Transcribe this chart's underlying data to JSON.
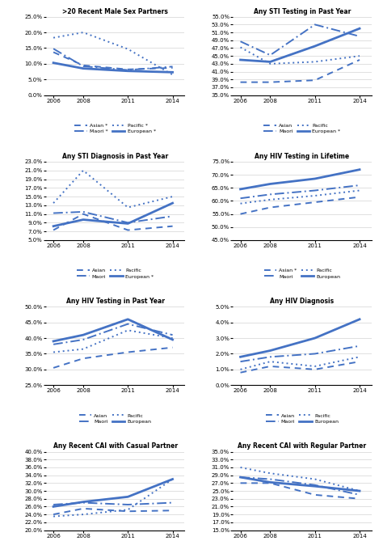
{
  "years": [
    2006,
    2008,
    2011,
    2014
  ],
  "plots": [
    {
      "title": ">20 Recent Male Sex Partners",
      "ylim": [
        0.0,
        0.25
      ],
      "yticks": [
        0.0,
        0.05,
        0.1,
        0.15,
        0.2,
        0.25
      ],
      "ytick_labels": [
        "0.0%",
        "5.0%",
        "10.0%",
        "15.0%",
        "20.0%",
        "25.0%"
      ],
      "series": {
        "Asian": [
          0.137,
          0.095,
          0.082,
          0.087
        ],
        "Maori": [
          0.148,
          0.092,
          0.08,
          0.091
        ],
        "Pacific": [
          0.183,
          0.2,
          0.147,
          0.065
        ],
        "European": [
          0.103,
          0.085,
          0.077,
          0.073
        ]
      },
      "legend_asterisk": {
        "Asian": true,
        "Maori": true,
        "Pacific": true,
        "European": true
      }
    },
    {
      "title": "Any STI Testing in Past Year",
      "ylim": [
        0.35,
        0.55
      ],
      "yticks": [
        0.35,
        0.37,
        0.39,
        0.41,
        0.43,
        0.45,
        0.47,
        0.49,
        0.51,
        0.53,
        0.55
      ],
      "ytick_labels": [
        "35.0%",
        "37.0%",
        "39.0%",
        "41.0%",
        "43.0%",
        "45.0%",
        "47.0%",
        "49.0%",
        "51.0%",
        "53.0%",
        "55.0%"
      ],
      "series": {
        "Asian": [
          0.383,
          0.383,
          0.388,
          0.44
        ],
        "Maori": [
          0.487,
          0.452,
          0.53,
          0.5
        ],
        "Pacific": [
          0.472,
          0.43,
          0.435,
          0.45
        ],
        "European": [
          0.44,
          0.435,
          0.475,
          0.52
        ]
      },
      "legend_asterisk": {
        "Asian": false,
        "Maori": false,
        "Pacific": false,
        "European": true
      }
    },
    {
      "title": "Any STI Diagnosis in Past Year",
      "ylim": [
        0.05,
        0.23
      ],
      "yticks": [
        0.05,
        0.07,
        0.09,
        0.11,
        0.13,
        0.15,
        0.17,
        0.19,
        0.21,
        0.23
      ],
      "ytick_labels": [
        "5.0%",
        "7.0%",
        "9.0%",
        "11.0%",
        "13.0%",
        "15.0%",
        "17.0%",
        "19.0%",
        "21.0%",
        "23.0%"
      ],
      "series": {
        "Asian": [
          0.073,
          0.11,
          0.073,
          0.082
        ],
        "Maori": [
          0.112,
          0.115,
          0.09,
          0.105
        ],
        "Pacific": [
          0.135,
          0.21,
          0.125,
          0.15
        ],
        "European": [
          0.082,
          0.097,
          0.088,
          0.135
        ]
      },
      "legend_asterisk": {
        "Asian": false,
        "Maori": false,
        "Pacific": false,
        "European": true
      }
    },
    {
      "title": "Any HIV Testing in Lifetime",
      "ylim": [
        0.45,
        0.75
      ],
      "yticks": [
        0.45,
        0.5,
        0.55,
        0.6,
        0.65,
        0.7,
        0.75
      ],
      "ytick_labels": [
        "45.0%",
        "50.0%",
        "55.0%",
        "60.0%",
        "65.0%",
        "70.0%",
        "75.0%"
      ],
      "series": {
        "Asian": [
          0.55,
          0.575,
          0.595,
          0.615
        ],
        "Maori": [
          0.61,
          0.625,
          0.64,
          0.66
        ],
        "Pacific": [
          0.59,
          0.605,
          0.62,
          0.64
        ],
        "European": [
          0.645,
          0.665,
          0.685,
          0.72
        ]
      },
      "legend_asterisk": {
        "Asian": true,
        "Maori": false,
        "Pacific": false,
        "European": false
      }
    },
    {
      "title": "Any HIV Testing in Past Year",
      "ylim": [
        0.25,
        0.5
      ],
      "yticks": [
        0.25,
        0.3,
        0.35,
        0.4,
        0.45,
        0.5
      ],
      "ytick_labels": [
        "25.0%",
        "30.0%",
        "35.0%",
        "40.0%",
        "45.0%",
        "50.0%"
      ],
      "series": {
        "Asian": [
          0.305,
          0.335,
          0.355,
          0.37
        ],
        "Maori": [
          0.38,
          0.395,
          0.445,
          0.41
        ],
        "Pacific": [
          0.355,
          0.365,
          0.425,
          0.4
        ],
        "European": [
          0.39,
          0.41,
          0.46,
          0.395
        ]
      },
      "legend_asterisk": {
        "Asian": false,
        "Maori": false,
        "Pacific": false,
        "European": false
      }
    },
    {
      "title": "Any HIV Diagnosis",
      "ylim": [
        0.0,
        0.05
      ],
      "yticks": [
        0.0,
        0.01,
        0.02,
        0.03,
        0.04,
        0.05
      ],
      "ytick_labels": [
        "0.0%",
        "1.0%",
        "2.0%",
        "3.0%",
        "4.0%",
        "5.0%"
      ],
      "series": {
        "Asian": [
          0.008,
          0.012,
          0.01,
          0.015
        ],
        "Maori": [
          0.015,
          0.018,
          0.02,
          0.025
        ],
        "Pacific": [
          0.01,
          0.015,
          0.012,
          0.018
        ],
        "European": [
          0.018,
          0.022,
          0.03,
          0.042
        ]
      },
      "legend_asterisk": {
        "Asian": false,
        "Maori": false,
        "Pacific": false,
        "European": false
      }
    },
    {
      "title": "Any Recent CAI with Casual Partner",
      "ylim": [
        0.2,
        0.4
      ],
      "yticks": [
        0.2,
        0.22,
        0.24,
        0.26,
        0.28,
        0.3,
        0.32,
        0.34,
        0.36,
        0.38,
        0.4
      ],
      "ytick_labels": [
        "20.0%",
        "22.0%",
        "24.0%",
        "26.0%",
        "28.0%",
        "30.0%",
        "32.0%",
        "34.0%",
        "36.0%",
        "38.0%",
        "40.0%"
      ],
      "series": {
        "Asian": [
          0.24,
          0.255,
          0.248,
          0.25
        ],
        "Maori": [
          0.265,
          0.27,
          0.265,
          0.27
        ],
        "Pacific": [
          0.235,
          0.24,
          0.252,
          0.33
        ],
        "European": [
          0.26,
          0.272,
          0.285,
          0.33
        ]
      },
      "legend_asterisk": {
        "Asian": false,
        "Maori": true,
        "Pacific": false,
        "European": true
      }
    },
    {
      "title": "Any Recent CAI with Regular Partner",
      "ylim": [
        0.15,
        0.35
      ],
      "yticks": [
        0.15,
        0.17,
        0.19,
        0.21,
        0.23,
        0.25,
        0.27,
        0.29,
        0.31,
        0.33,
        0.35
      ],
      "ytick_labels": [
        "15.0%",
        "17.0%",
        "19.0%",
        "21.0%",
        "23.0%",
        "25.0%",
        "27.0%",
        "29.0%",
        "31.0%",
        "33.0%",
        "35.0%"
      ],
      "series": {
        "Asian": [
          0.27,
          0.27,
          0.24,
          0.23
        ],
        "Maori": [
          0.285,
          0.28,
          0.265,
          0.24
        ],
        "Pacific": [
          0.31,
          0.295,
          0.28,
          0.25
        ],
        "European": [
          0.285,
          0.272,
          0.262,
          0.25
        ]
      },
      "legend_asterisk": {
        "Asian": false,
        "Maori": false,
        "Pacific": false,
        "European": false
      }
    }
  ],
  "line_styles": {
    "Asian": {
      "color": "#4472C4",
      "linestyle": "--",
      "linewidth": 1.5,
      "marker": null
    },
    "Maori": {
      "color": "#4472C4",
      "linestyle": "--",
      "linewidth": 1.5,
      "marker": null
    },
    "Pacific": {
      "color": "#4472C4",
      "linestyle": ":",
      "linewidth": 1.5,
      "marker": null
    },
    "European": {
      "color": "#4472C4",
      "linestyle": "-",
      "linewidth": 2.0,
      "marker": null
    }
  },
  "dash_styles": {
    "Asian": [
      4,
      3
    ],
    "Maori": [
      6,
      2,
      2,
      2
    ],
    "Pacific": [
      1,
      2
    ],
    "European": []
  }
}
